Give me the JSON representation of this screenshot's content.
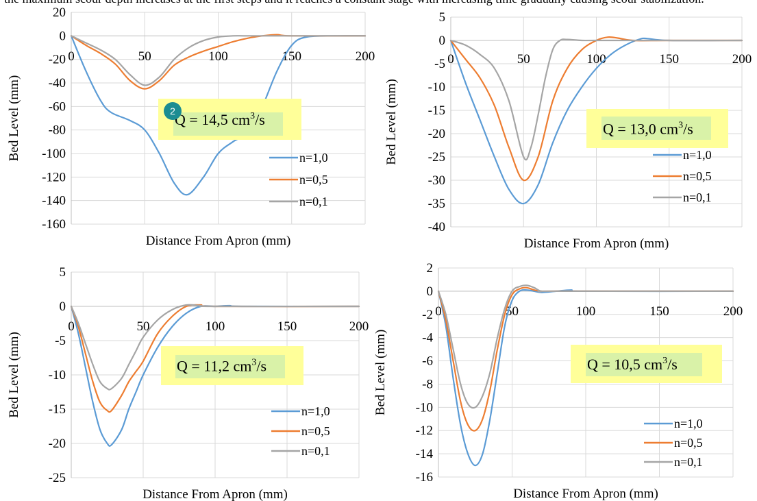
{
  "cut_text": "the maximum scour depth increases at the first steps and it reaches a constant stage with increasing time gradually causing scour stabilization.",
  "annotation_badge": "2",
  "colors": {
    "n10": "#5B9BD5",
    "n05": "#ED7D31",
    "n01": "#A5A5A5",
    "q_box": "#FFFF99",
    "q_highlight": "#D9F2A8",
    "badge": "#1B8D92",
    "grid": "#D9D9D9"
  },
  "chart_data": [
    {
      "type": "line",
      "q_label": {
        "prefix": "Q = 14,5 ",
        "unit": "cm",
        "sup": "3",
        "suffix": "/s"
      },
      "xlabel": "Distance From Apron (mm)",
      "ylabel": "Bed Level (mm)",
      "xlim": [
        0,
        200
      ],
      "ylim": [
        -160,
        20
      ],
      "xticks": [
        "0",
        "50",
        "100",
        "150",
        "200"
      ],
      "yticks": [
        "20",
        "0",
        "-20",
        "-40",
        "-60",
        "-80",
        "-100",
        "-120",
        "-140",
        "-160"
      ],
      "grid": true,
      "legend": "bottom-right",
      "series": [
        {
          "name": "n=1,0",
          "color_key": "n10",
          "x": [
            0,
            10,
            20,
            27,
            40,
            50,
            60,
            70,
            79,
            90,
            100,
            110,
            120,
            130,
            140,
            150,
            160,
            180,
            200
          ],
          "y": [
            0,
            -30,
            -55,
            -65,
            -72,
            -80,
            -100,
            -125,
            -135,
            -120,
            -100,
            -90,
            -82,
            -60,
            -30,
            -8,
            -1,
            0,
            0
          ]
        },
        {
          "name": "n=0,5",
          "color_key": "n05",
          "x": [
            0,
            10,
            20,
            30,
            40,
            50,
            60,
            70,
            80,
            90,
            100,
            110,
            120,
            130,
            140,
            150,
            200
          ],
          "y": [
            0,
            -8,
            -15,
            -24,
            -38,
            -45,
            -38,
            -25,
            -18,
            -13,
            -9,
            -5,
            -2,
            0,
            1,
            0,
            0
          ]
        },
        {
          "name": "n=0,1",
          "color_key": "n01",
          "x": [
            0,
            10,
            20,
            30,
            40,
            50,
            60,
            70,
            80,
            90,
            100,
            110,
            120,
            150,
            200
          ],
          "y": [
            0,
            -6,
            -12,
            -20,
            -33,
            -42,
            -35,
            -20,
            -10,
            -4,
            -1,
            0,
            0,
            0,
            0
          ]
        }
      ]
    },
    {
      "type": "line",
      "q_label": {
        "prefix": "Q = 13,0 ",
        "unit": "cm",
        "sup": "3",
        "suffix": "/s"
      },
      "xlabel": "Distance From Apron (mm)",
      "ylabel": "Bed Level (mm)",
      "xlim": [
        0,
        200
      ],
      "ylim": [
        -40,
        5
      ],
      "xticks": [
        "0",
        "50",
        "100",
        "150",
        "200"
      ],
      "yticks": [
        "5",
        "0",
        "-5",
        "-10",
        "-15",
        "-20",
        "-25",
        "-30",
        "-35",
        "-40"
      ],
      "grid": true,
      "legend": "bottom-right",
      "series": [
        {
          "name": "n=1,0",
          "color_key": "n10",
          "x": [
            0,
            10,
            20,
            30,
            40,
            50,
            60,
            70,
            80,
            90,
            100,
            110,
            120,
            130,
            135,
            150,
            200
          ],
          "y": [
            0,
            -9,
            -17,
            -25,
            -32,
            -35,
            -31,
            -22,
            -15,
            -10,
            -6,
            -3,
            -1,
            0.3,
            0.4,
            0,
            0
          ]
        },
        {
          "name": "n=0,5",
          "color_key": "n05",
          "x": [
            0,
            10,
            20,
            30,
            40,
            50,
            60,
            70,
            80,
            90,
            100,
            108,
            115,
            125,
            150,
            200
          ],
          "y": [
            0,
            -4,
            -8,
            -14,
            -23,
            -30,
            -25,
            -13,
            -6,
            -2,
            0,
            0.7,
            0.5,
            0,
            0,
            0
          ]
        },
        {
          "name": "n=0,1",
          "color_key": "n01",
          "x": [
            0,
            10,
            20,
            30,
            40,
            50,
            55,
            60,
            65,
            70,
            75,
            80,
            90,
            100,
            150,
            200
          ],
          "y": [
            0,
            -1,
            -3,
            -6,
            -13,
            -25,
            -23,
            -16,
            -8,
            -2,
            0,
            0.2,
            0,
            0,
            0,
            0
          ]
        }
      ]
    },
    {
      "type": "line",
      "q_label": {
        "prefix": "Q = 11,2 ",
        "unit": "cm",
        "sup": "3",
        "suffix": "/s"
      },
      "xlabel": "Distance From Apron (mm)",
      "ylabel": "Bed Level (mm)",
      "xlim": [
        0,
        200
      ],
      "ylim": [
        -25,
        5
      ],
      "xticks": [
        "0",
        "50",
        "100",
        "150",
        "200"
      ],
      "yticks": [
        "5",
        "0",
        "-5",
        "-10",
        "-15",
        "-20",
        "-25"
      ],
      "grid": true,
      "legend": "bottom-right",
      "series": [
        {
          "name": "n=1,0",
          "color_key": "n10",
          "x": [
            0,
            5,
            10,
            15,
            20,
            25,
            28,
            35,
            40,
            45,
            50,
            60,
            70,
            80,
            90,
            100,
            110,
            120,
            200
          ],
          "y": [
            0,
            -4,
            -9,
            -14,
            -18,
            -20,
            -20.2,
            -18,
            -15,
            -12.5,
            -10,
            -6,
            -3,
            -1,
            0,
            0,
            0.1,
            0,
            0
          ]
        },
        {
          "name": "n=0,5",
          "color_key": "n05",
          "x": [
            0,
            5,
            10,
            15,
            20,
            25,
            28,
            35,
            40,
            45,
            50,
            60,
            70,
            80,
            90,
            100,
            200
          ],
          "y": [
            0,
            -3,
            -7,
            -11,
            -14,
            -15.2,
            -15.2,
            -13,
            -11,
            -9.5,
            -8,
            -4,
            -1.5,
            0,
            0.2,
            0,
            0
          ]
        },
        {
          "name": "n=0,1",
          "color_key": "n01",
          "x": [
            0,
            5,
            10,
            15,
            20,
            25,
            28,
            35,
            40,
            45,
            50,
            60,
            70,
            80,
            90,
            100,
            200
          ],
          "y": [
            0,
            -2.5,
            -5.5,
            -8.5,
            -11,
            -12,
            -12,
            -10.5,
            -8.5,
            -6.5,
            -4.5,
            -2,
            -0.5,
            0.2,
            0.1,
            0,
            0
          ]
        }
      ]
    },
    {
      "type": "line",
      "q_label": {
        "prefix": "Q = 10,5 ",
        "unit": "cm",
        "sup": "3",
        "suffix": "/s"
      },
      "xlabel": "Distance From Apron (mm)",
      "ylabel": "Bed Level (mm)",
      "xlim": [
        0,
        200
      ],
      "ylim": [
        -16,
        2
      ],
      "xticks": [
        "0",
        "50",
        "100",
        "150",
        "200"
      ],
      "yticks": [
        "2",
        "0",
        "-2",
        "-4",
        "-6",
        "-8",
        "-10",
        "-12",
        "-14",
        "-16"
      ],
      "grid": true,
      "legend": "bottom-right",
      "series": [
        {
          "name": "n=1,0",
          "color_key": "n10",
          "x": [
            0,
            5,
            10,
            15,
            20,
            25,
            30,
            35,
            40,
            45,
            50,
            55,
            60,
            65,
            70,
            80,
            90,
            100,
            200
          ],
          "y": [
            0,
            -3,
            -7.5,
            -11.5,
            -14,
            -15,
            -14,
            -11,
            -7,
            -3,
            -0.8,
            0,
            0.1,
            0,
            -0.1,
            0,
            0.1,
            0,
            0
          ]
        },
        {
          "name": "n=0,5",
          "color_key": "n05",
          "x": [
            0,
            5,
            10,
            15,
            20,
            25,
            30,
            35,
            40,
            45,
            50,
            55,
            60,
            65,
            70,
            80,
            200
          ],
          "y": [
            0,
            -2.5,
            -6,
            -9.5,
            -11.5,
            -12,
            -11,
            -8.5,
            -5,
            -2,
            -0.3,
            0.2,
            0.3,
            0.1,
            0,
            0,
            0
          ]
        },
        {
          "name": "n=0,1",
          "color_key": "n01",
          "x": [
            0,
            5,
            10,
            15,
            20,
            25,
            30,
            35,
            40,
            45,
            50,
            55,
            60,
            65,
            70,
            80,
            200
          ],
          "y": [
            0,
            -2,
            -5,
            -8,
            -9.7,
            -10,
            -9,
            -7,
            -4,
            -1.5,
            0,
            0.4,
            0.5,
            0.3,
            0,
            0,
            0
          ]
        }
      ]
    }
  ]
}
